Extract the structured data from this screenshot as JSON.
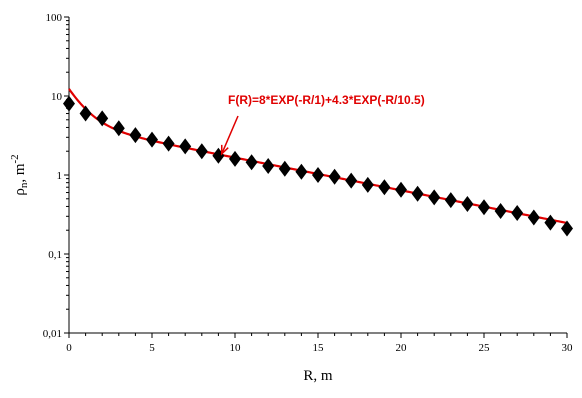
{
  "chart_data": {
    "type": "scatter",
    "title": "",
    "xlabel": "R, m",
    "ylabel_main": "ρ",
    "ylabel_sub": "n",
    "ylabel_unit": ", m",
    "ylabel_exp": "-2",
    "xlim": [
      0,
      30
    ],
    "ylim": [
      0.01,
      100
    ],
    "y_scale": "log",
    "grid": false,
    "x_ticks": [
      0,
      5,
      10,
      15,
      20,
      25,
      30
    ],
    "x_tick_labels": [
      "0",
      "5",
      "10",
      "15",
      "20",
      "25",
      "30"
    ],
    "y_ticks": [
      0.01,
      0.1,
      1,
      10,
      100
    ],
    "y_tick_labels": [
      "0,01",
      "0,1",
      "1",
      "10",
      "100"
    ],
    "series": [
      {
        "marker": "diamond",
        "color": "#000000",
        "x": [
          0,
          1,
          2,
          3,
          4,
          5,
          6,
          7,
          8,
          9,
          10,
          11,
          12,
          13,
          14,
          15,
          16,
          17,
          18,
          19,
          20,
          21,
          22,
          23,
          24,
          25,
          26,
          27,
          28,
          29,
          30
        ],
        "y": [
          8,
          6,
          5.2,
          3.9,
          3.2,
          2.8,
          2.5,
          2.3,
          2.0,
          1.75,
          1.6,
          1.45,
          1.3,
          1.2,
          1.1,
          1.0,
          0.95,
          0.85,
          0.75,
          0.7,
          0.65,
          0.58,
          0.52,
          0.48,
          0.43,
          0.39,
          0.35,
          0.33,
          0.29,
          0.25,
          0.21
        ]
      }
    ],
    "fit_curve": {
      "color": "#e00000",
      "terms": [
        {
          "a": 8,
          "tau": 1
        },
        {
          "a": 4.3,
          "tau": 10.5
        }
      ]
    },
    "annotation": {
      "text": "F(R)=8*EXP(-R/1)+4.3*EXP(-R/10.5)",
      "color": "#e00000",
      "arrow_to": {
        "x": 9.2,
        "y": 1.85
      }
    }
  }
}
